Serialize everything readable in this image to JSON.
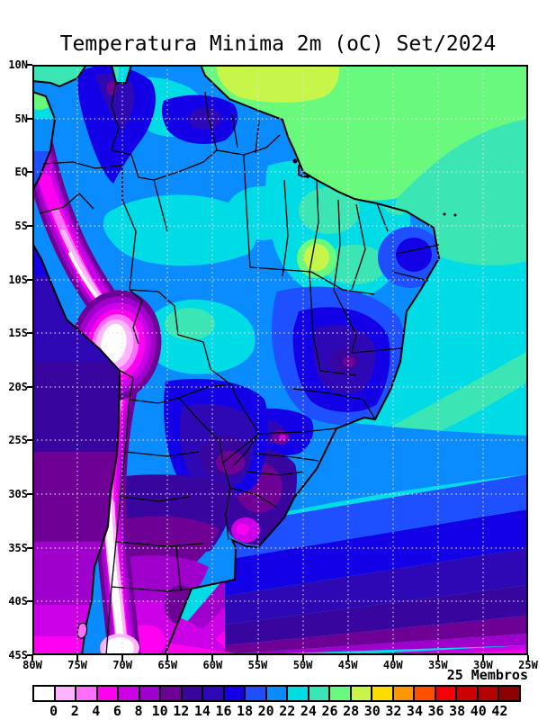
{
  "title": "Temperatura Minima 2m (oC) Set/2024",
  "annotation_right": "25 Membros",
  "axes": {
    "lat": [
      "10N",
      "5N",
      "EQ",
      "5S",
      "10S",
      "15S",
      "20S",
      "25S",
      "30S",
      "35S",
      "40S",
      "45S"
    ],
    "lon": [
      "80W",
      "75W",
      "70W",
      "65W",
      "60W",
      "55W",
      "50W",
      "45W",
      "40W",
      "35W",
      "30W",
      "25W"
    ]
  },
  "colorbar": {
    "unit": "oC",
    "labels": [
      "0",
      "2",
      "4",
      "6",
      "8",
      "10",
      "12",
      "14",
      "16",
      "18",
      "20",
      "22",
      "24",
      "26",
      "28",
      "30",
      "32",
      "34",
      "36",
      "38",
      "40",
      "42"
    ],
    "colors": [
      "#FFFFFF",
      "#FFB4FF",
      "#FF6EFF",
      "#FF00F0",
      "#CC00E6",
      "#A000CC",
      "#6E0096",
      "#38069E",
      "#2E08B4",
      "#1400E6",
      "#1E50FF",
      "#0A8CFF",
      "#00DCE6",
      "#3CE6B4",
      "#69FA7D",
      "#C8F54A",
      "#FFDC00",
      "#FF9600",
      "#FF5000",
      "#F50000",
      "#CC0000",
      "#B40000",
      "#8B0000"
    ]
  }
}
